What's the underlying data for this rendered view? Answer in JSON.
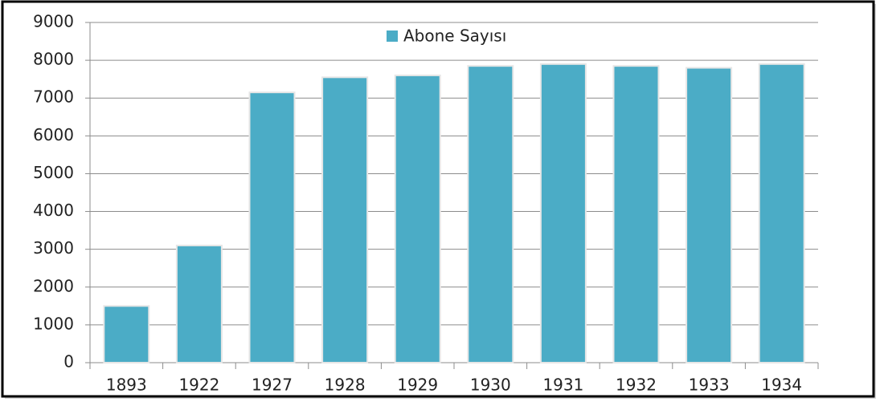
{
  "chart_data": {
    "type": "bar",
    "categories": [
      "1893",
      "1922",
      "1927",
      "1928",
      "1929",
      "1930",
      "1931",
      "1932",
      "1933",
      "1934"
    ],
    "series": [
      {
        "name": "Abone Sayısı",
        "color": "#4bacc6",
        "values": [
          1500,
          3100,
          7150,
          7550,
          7600,
          7850,
          7900,
          7850,
          7800,
          7900
        ]
      }
    ],
    "ylim": [
      0,
      9000
    ],
    "yticks": [
      0,
      1000,
      2000,
      3000,
      4000,
      5000,
      6000,
      7000,
      8000,
      9000
    ],
    "grid": true,
    "legend": "top"
  }
}
